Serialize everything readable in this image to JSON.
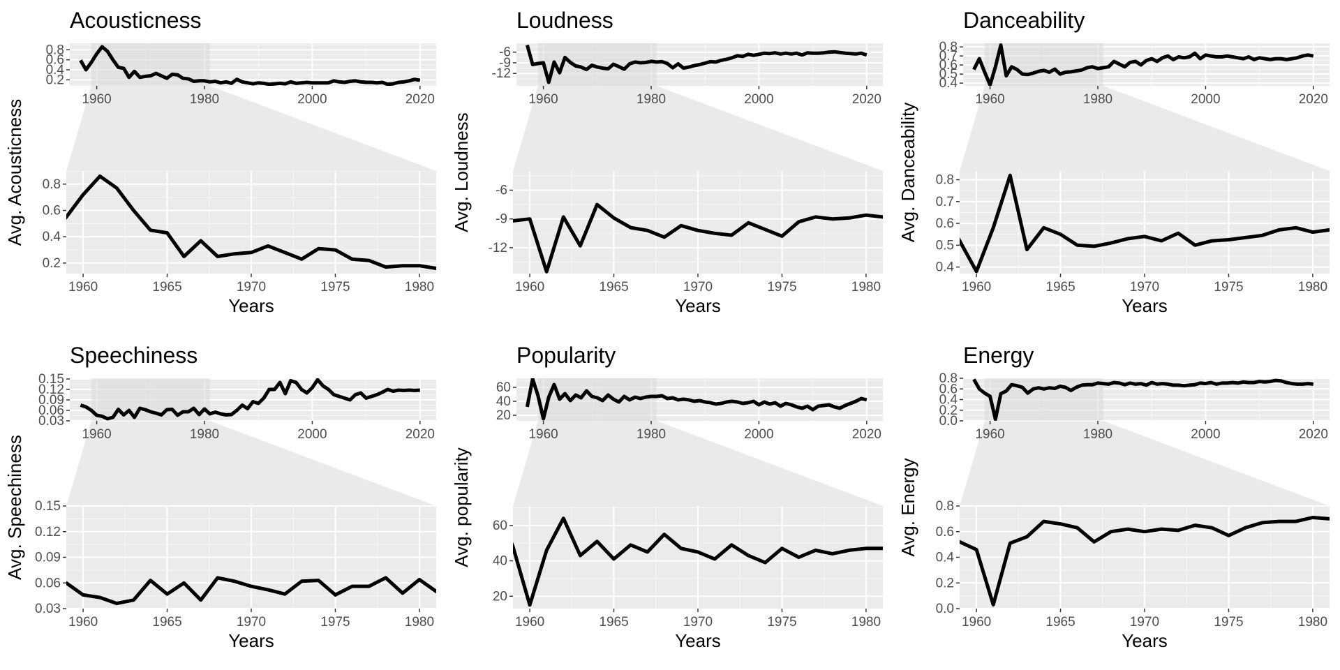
{
  "chart_data": [
    {
      "type": "line",
      "title": "Acousticness",
      "ylabel": "Avg. Acousticness",
      "xlabel": "Years",
      "overview": {
        "xlim": [
          1955,
          2023
        ],
        "ylim": [
          0.08,
          0.93
        ],
        "xticks": [
          1960,
          1980,
          2000,
          2020
        ],
        "yticks": [
          0.2,
          0.4,
          0.6,
          0.8
        ],
        "ytick_labels": [
          "0.2",
          "0.4",
          "0.6",
          "0.8"
        ],
        "highlight": [
          1959,
          1981
        ]
      },
      "zoom": {
        "xlim": [
          1959,
          1981
        ],
        "ylim": [
          0.12,
          0.9
        ],
        "xticks": [
          1960,
          1965,
          1970,
          1975,
          1980
        ],
        "yticks": [
          0.2,
          0.4,
          0.6,
          0.8
        ],
        "ytick_labels": [
          "0.2",
          "0.4",
          "0.6",
          "0.8"
        ]
      },
      "x": [
        1957,
        1958,
        1959,
        1960,
        1961,
        1962,
        1963,
        1964,
        1965,
        1966,
        1967,
        1968,
        1969,
        1970,
        1971,
        1972,
        1973,
        1974,
        1975,
        1976,
        1977,
        1978,
        1979,
        1980,
        1981,
        1982,
        1983,
        1984,
        1985,
        1986,
        1987,
        1988,
        1989,
        1990,
        1991,
        1992,
        1993,
        1994,
        1995,
        1996,
        1997,
        1998,
        1999,
        2000,
        2001,
        2002,
        2003,
        2004,
        2005,
        2006,
        2007,
        2008,
        2009,
        2010,
        2011,
        2012,
        2013,
        2014,
        2015,
        2016,
        2017,
        2018,
        2019,
        2020
      ],
      "values": [
        0.59,
        0.4,
        0.55,
        0.72,
        0.86,
        0.77,
        0.6,
        0.45,
        0.43,
        0.25,
        0.37,
        0.25,
        0.27,
        0.28,
        0.33,
        0.28,
        0.23,
        0.31,
        0.3,
        0.23,
        0.22,
        0.17,
        0.18,
        0.18,
        0.16,
        0.17,
        0.14,
        0.16,
        0.13,
        0.21,
        0.16,
        0.14,
        0.12,
        0.14,
        0.13,
        0.11,
        0.12,
        0.13,
        0.12,
        0.16,
        0.13,
        0.14,
        0.15,
        0.14,
        0.14,
        0.14,
        0.14,
        0.18,
        0.16,
        0.15,
        0.17,
        0.18,
        0.16,
        0.15,
        0.15,
        0.14,
        0.15,
        0.11,
        0.12,
        0.15,
        0.16,
        0.18,
        0.21,
        0.19
      ]
    },
    {
      "type": "line",
      "title": "Loudness",
      "ylabel": "Avg. Loudness",
      "xlabel": "Years",
      "overview": {
        "xlim": [
          1955,
          2023
        ],
        "ylim": [
          -15.5,
          -3.5
        ],
        "xticks": [
          1960,
          1980,
          2000,
          2020
        ],
        "yticks": [
          -12,
          -9,
          -6
        ],
        "ytick_labels": [
          "-12",
          "-9",
          "-6"
        ],
        "highlight": [
          1959,
          1981
        ]
      },
      "zoom": {
        "xlim": [
          1959,
          1981
        ],
        "ylim": [
          -14.7,
          -4
        ],
        "xticks": [
          1960,
          1965,
          1970,
          1975,
          1980
        ],
        "yticks": [
          -12,
          -9,
          -6
        ],
        "ytick_labels": [
          "-12",
          "-9",
          "-6"
        ]
      },
      "x": [
        1957,
        1958,
        1959,
        1960,
        1961,
        1962,
        1963,
        1964,
        1965,
        1966,
        1967,
        1968,
        1969,
        1970,
        1971,
        1972,
        1973,
        1974,
        1975,
        1976,
        1977,
        1978,
        1979,
        1980,
        1981,
        1982,
        1983,
        1984,
        1985,
        1986,
        1987,
        1988,
        1989,
        1990,
        1991,
        1992,
        1993,
        1994,
        1995,
        1996,
        1997,
        1998,
        1999,
        2000,
        2001,
        2002,
        2003,
        2004,
        2005,
        2006,
        2007,
        2008,
        2009,
        2010,
        2011,
        2012,
        2013,
        2014,
        2015,
        2016,
        2017,
        2018,
        2019,
        2020
      ],
      "values": [
        -4,
        -9.5,
        -9.2,
        -9.0,
        -14.5,
        -8.8,
        -11.8,
        -7.5,
        -8.9,
        -9.9,
        -10.2,
        -10.9,
        -9.7,
        -10.2,
        -10.5,
        -10.7,
        -9.4,
        -10.1,
        -10.8,
        -9.3,
        -8.8,
        -9.0,
        -8.9,
        -8.6,
        -8.8,
        -8.7,
        -9.2,
        -10.4,
        -9.3,
        -10.5,
        -10.2,
        -9.8,
        -9.5,
        -9.1,
        -8.7,
        -8.8,
        -8.3,
        -8.0,
        -7.6,
        -7.0,
        -7.2,
        -6.6,
        -6.9,
        -6.6,
        -6.3,
        -6.4,
        -6.2,
        -6.5,
        -6.3,
        -6.5,
        -6.3,
        -6.8,
        -6.2,
        -6.3,
        -6.3,
        -6.2,
        -6.0,
        -5.9,
        -6.1,
        -6.3,
        -6.4,
        -6.5,
        -6.3,
        -6.8
      ]
    },
    {
      "type": "line",
      "title": "Danceability",
      "ylabel": "Avg. Danceability",
      "xlabel": "Years",
      "overview": {
        "xlim": [
          1955,
          2023
        ],
        "ylim": [
          0.37,
          0.84
        ],
        "xticks": [
          1960,
          1980,
          2000,
          2020
        ],
        "yticks": [
          0.4,
          0.5,
          0.6,
          0.7,
          0.8
        ],
        "ytick_labels": [
          "0.4",
          "0.5",
          "0.6",
          "0.7",
          "0.8"
        ],
        "highlight": [
          1959,
          1981
        ]
      },
      "zoom": {
        "xlim": [
          1959,
          1981
        ],
        "ylim": [
          0.37,
          0.84
        ],
        "xticks": [
          1960,
          1965,
          1970,
          1975,
          1980
        ],
        "yticks": [
          0.4,
          0.5,
          0.6,
          0.7,
          0.8
        ],
        "ytick_labels": [
          "0.4",
          "0.5",
          "0.6",
          "0.7",
          "0.8"
        ]
      },
      "x": [
        1957,
        1958,
        1959,
        1960,
        1961,
        1962,
        1963,
        1964,
        1965,
        1966,
        1967,
        1968,
        1969,
        1970,
        1971,
        1972,
        1973,
        1974,
        1975,
        1976,
        1977,
        1978,
        1979,
        1980,
        1981,
        1982,
        1983,
        1984,
        1985,
        1986,
        1987,
        1988,
        1989,
        1990,
        1991,
        1992,
        1993,
        1994,
        1995,
        1996,
        1997,
        1998,
        1999,
        2000,
        2001,
        2002,
        2003,
        2004,
        2005,
        2006,
        2007,
        2008,
        2009,
        2010,
        2011,
        2012,
        2013,
        2014,
        2015,
        2016,
        2017,
        2018,
        2019,
        2020
      ],
      "values": [
        0.55,
        0.67,
        0.52,
        0.38,
        0.58,
        0.82,
        0.48,
        0.58,
        0.55,
        0.5,
        0.495,
        0.51,
        0.53,
        0.54,
        0.52,
        0.555,
        0.5,
        0.52,
        0.525,
        0.535,
        0.545,
        0.57,
        0.58,
        0.56,
        0.57,
        0.58,
        0.64,
        0.61,
        0.58,
        0.63,
        0.64,
        0.6,
        0.65,
        0.67,
        0.64,
        0.68,
        0.7,
        0.66,
        0.69,
        0.68,
        0.69,
        0.73,
        0.67,
        0.71,
        0.7,
        0.69,
        0.69,
        0.7,
        0.69,
        0.68,
        0.67,
        0.69,
        0.66,
        0.68,
        0.67,
        0.66,
        0.67,
        0.67,
        0.66,
        0.67,
        0.68,
        0.7,
        0.71,
        0.7
      ]
    },
    {
      "type": "line",
      "title": "Speechiness",
      "ylabel": "Avg. Speechiness",
      "xlabel": "Years",
      "overview": {
        "xlim": [
          1955,
          2023
        ],
        "ylim": [
          0.03,
          0.152
        ],
        "xticks": [
          1960,
          1980,
          2000,
          2020
        ],
        "yticks": [
          0.03,
          0.06,
          0.09,
          0.12,
          0.15
        ],
        "ytick_labels": [
          "0.03",
          "0.06",
          "0.09",
          "0.12",
          "0.15"
        ],
        "highlight": [
          1959,
          1981
        ]
      },
      "zoom": {
        "xlim": [
          1959,
          1981
        ],
        "ylim": [
          0.03,
          0.15
        ],
        "xticks": [
          1960,
          1965,
          1970,
          1975,
          1980
        ],
        "yticks": [
          0.03,
          0.06,
          0.09,
          0.12,
          0.15
        ],
        "ytick_labels": [
          "0.03",
          "0.06",
          "0.09",
          "0.12",
          "0.15"
        ]
      },
      "x": [
        1957,
        1958,
        1959,
        1960,
        1961,
        1962,
        1963,
        1964,
        1965,
        1966,
        1967,
        1968,
        1969,
        1970,
        1971,
        1972,
        1973,
        1974,
        1975,
        1976,
        1977,
        1978,
        1979,
        1980,
        1981,
        1982,
        1983,
        1984,
        1985,
        1986,
        1987,
        1988,
        1989,
        1990,
        1991,
        1992,
        1993,
        1994,
        1995,
        1996,
        1997,
        1998,
        1999,
        2000,
        2001,
        2002,
        2003,
        2004,
        2005,
        2006,
        2007,
        2008,
        2009,
        2010,
        2011,
        2012,
        2013,
        2014,
        2015,
        2016,
        2017,
        2018,
        2019,
        2020
      ],
      "values": [
        0.075,
        0.07,
        0.06,
        0.046,
        0.043,
        0.036,
        0.04,
        0.063,
        0.047,
        0.06,
        0.04,
        0.066,
        0.062,
        0.056,
        0.052,
        0.047,
        0.062,
        0.063,
        0.046,
        0.056,
        0.056,
        0.066,
        0.048,
        0.064,
        0.05,
        0.055,
        0.05,
        0.047,
        0.048,
        0.06,
        0.075,
        0.065,
        0.085,
        0.08,
        0.095,
        0.12,
        0.12,
        0.14,
        0.108,
        0.145,
        0.14,
        0.12,
        0.11,
        0.125,
        0.148,
        0.13,
        0.12,
        0.105,
        0.1,
        0.095,
        0.09,
        0.105,
        0.11,
        0.095,
        0.1,
        0.105,
        0.112,
        0.12,
        0.115,
        0.118,
        0.117,
        0.118,
        0.117,
        0.118
      ]
    },
    {
      "type": "line",
      "title": "Popularity",
      "ylabel": "Avg. popularity",
      "xlabel": "Years",
      "overview": {
        "xlim": [
          1955,
          2023
        ],
        "ylim": [
          12,
          73
        ],
        "xticks": [
          1960,
          1980,
          2000,
          2020
        ],
        "yticks": [
          20,
          40,
          60
        ],
        "ytick_labels": [
          "20",
          "40",
          "60"
        ],
        "highlight": [
          1959,
          1981
        ]
      },
      "zoom": {
        "xlim": [
          1959,
          1981
        ],
        "ylim": [
          13,
          71
        ],
        "xticks": [
          1960,
          1965,
          1970,
          1975,
          1980
        ],
        "yticks": [
          20,
          40,
          60
        ],
        "ytick_labels": [
          "20",
          "40",
          "60"
        ]
      },
      "x": [
        1957,
        1958,
        1959,
        1960,
        1961,
        1962,
        1963,
        1964,
        1965,
        1966,
        1967,
        1968,
        1969,
        1970,
        1971,
        1972,
        1973,
        1974,
        1975,
        1976,
        1977,
        1978,
        1979,
        1980,
        1981,
        1982,
        1983,
        1984,
        1985,
        1986,
        1987,
        1988,
        1989,
        1990,
        1991,
        1992,
        1993,
        1994,
        1995,
        1996,
        1997,
        1998,
        1999,
        2000,
        2001,
        2002,
        2003,
        2004,
        2005,
        2006,
        2007,
        2008,
        2009,
        2010,
        2011,
        2012,
        2013,
        2014,
        2015,
        2016,
        2017,
        2018,
        2019,
        2020
      ],
      "values": [
        32,
        72,
        48,
        15,
        46,
        64,
        43,
        51,
        41,
        49,
        45,
        55,
        47,
        45,
        41,
        49,
        43,
        39,
        47,
        42,
        46,
        44,
        46,
        47,
        47,
        48,
        44,
        45,
        42,
        43,
        42,
        40,
        41,
        39,
        38,
        36,
        37,
        39,
        40,
        39,
        37,
        38,
        40,
        35,
        39,
        36,
        38,
        33,
        37,
        35,
        32,
        30,
        33,
        28,
        33,
        34,
        35,
        32,
        30,
        34,
        37,
        40,
        44,
        42
      ]
    },
    {
      "type": "line",
      "title": "Energy",
      "ylabel": "Avg. Energy",
      "xlabel": "Years",
      "overview": {
        "xlim": [
          1955,
          2023
        ],
        "ylim": [
          0.0,
          0.8
        ],
        "xticks": [
          1960,
          1980,
          2000,
          2020
        ],
        "yticks": [
          0.0,
          0.2,
          0.4,
          0.6,
          0.8
        ],
        "ytick_labels": [
          "0.0",
          "0.2",
          "0.4",
          "0.6",
          "0.8"
        ],
        "highlight": [
          1959,
          1981
        ]
      },
      "zoom": {
        "xlim": [
          1959,
          1981
        ],
        "ylim": [
          0.0,
          0.8
        ],
        "xticks": [
          1960,
          1965,
          1970,
          1975,
          1980
        ],
        "yticks": [
          0.0,
          0.2,
          0.4,
          0.6,
          0.8
        ],
        "ytick_labels": [
          "0.0",
          "0.2",
          "0.4",
          "0.6",
          "0.8"
        ]
      },
      "x": [
        1957,
        1958,
        1959,
        1960,
        1961,
        1962,
        1963,
        1964,
        1965,
        1966,
        1967,
        1968,
        1969,
        1970,
        1971,
        1972,
        1973,
        1974,
        1975,
        1976,
        1977,
        1978,
        1979,
        1980,
        1981,
        1982,
        1983,
        1984,
        1985,
        1986,
        1987,
        1988,
        1989,
        1990,
        1991,
        1992,
        1993,
        1994,
        1995,
        1996,
        1997,
        1998,
        1999,
        2000,
        2001,
        2002,
        2003,
        2004,
        2005,
        2006,
        2007,
        2008,
        2009,
        2010,
        2011,
        2012,
        2013,
        2014,
        2015,
        2016,
        2017,
        2018,
        2019,
        2020
      ],
      "values": [
        0.78,
        0.6,
        0.52,
        0.46,
        0.03,
        0.51,
        0.56,
        0.68,
        0.66,
        0.63,
        0.52,
        0.6,
        0.62,
        0.6,
        0.62,
        0.61,
        0.65,
        0.63,
        0.57,
        0.63,
        0.67,
        0.68,
        0.68,
        0.71,
        0.7,
        0.69,
        0.72,
        0.71,
        0.68,
        0.71,
        0.69,
        0.7,
        0.67,
        0.72,
        0.69,
        0.7,
        0.69,
        0.67,
        0.67,
        0.66,
        0.67,
        0.68,
        0.71,
        0.7,
        0.72,
        0.69,
        0.71,
        0.71,
        0.72,
        0.71,
        0.73,
        0.72,
        0.72,
        0.74,
        0.73,
        0.74,
        0.76,
        0.75,
        0.72,
        0.7,
        0.69,
        0.69,
        0.7,
        0.69
      ]
    }
  ]
}
